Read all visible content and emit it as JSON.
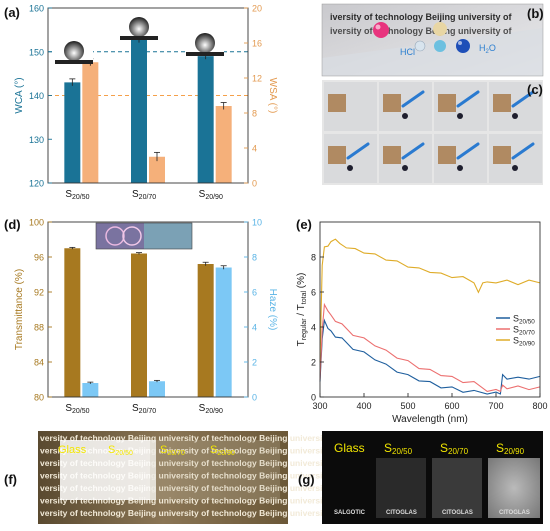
{
  "colors": {
    "wca": "#1a7396",
    "wsa": "#f5b07a",
    "trans": "#a77920",
    "haze": "#7cc8f5",
    "s50": "#1f5f9e",
    "s70": "#ec6f6f",
    "s90": "#dfac29",
    "axis": "#333333"
  },
  "panels": {
    "a": "(a)",
    "b": "(b)",
    "c": "(c)",
    "d": "(d)",
    "e": "(e)",
    "f": "(f)",
    "g": "(g)"
  },
  "photo_b": {
    "text_line": "iversity of technology Beijing university of",
    "drops": {
      "hcl": "HCl",
      "h2o": "H",
      "h2o_sub": "2",
      "h2o_end": "O"
    }
  },
  "photo_f": {
    "text_line": "versity of technology Beijing university of technology Beijing university",
    "labels": {
      "glass": "Glass",
      "s50": "S",
      "s50_sub": "20/50",
      "s70": "S",
      "s70_sub": "20/70",
      "s90": "S",
      "s90_sub": "20/90"
    }
  },
  "photo_g": {
    "labels": {
      "glass": "Glass",
      "s50": "S",
      "s50_sub": "20/50",
      "s70": "S",
      "s70_sub": "20/70",
      "s90": "S",
      "s90_sub": "20/90"
    },
    "brand": "CITOGLAS",
    "brand_mirror": "SALGOTIC"
  },
  "chart_data": [
    {
      "id": "a",
      "type": "bar",
      "categories": [
        "S",
        "S",
        "S"
      ],
      "category_subs": [
        "20/50",
        "20/70",
        "20/90"
      ],
      "series": [
        {
          "name": "WCA",
          "axis": "left",
          "values": [
            143,
            153,
            149
          ],
          "errors": [
            0.8,
            0.9,
            0.7
          ]
        },
        {
          "name": "WSA",
          "axis": "right",
          "values": [
            13.8,
            3.0,
            8.8
          ],
          "errors": [
            0.4,
            0.5,
            0.4
          ]
        }
      ],
      "ylabel": "WCA (°)",
      "y2label": "WSA (°)",
      "ylim": [
        120,
        160
      ],
      "y2lim": [
        0,
        20
      ],
      "yticks": [
        "120",
        "130",
        "140",
        "150",
        "160"
      ],
      "y2ticks": [
        "0",
        "4",
        "8",
        "12",
        "16",
        "20"
      ],
      "reference_lines": [
        {
          "axis": "left",
          "value": 150,
          "color": "#1a7396"
        },
        {
          "axis": "right",
          "value": 10,
          "color": "#f5a04a"
        }
      ]
    },
    {
      "id": "d",
      "type": "bar",
      "categories": [
        "S",
        "S",
        "S"
      ],
      "category_subs": [
        "20/50",
        "20/70",
        "20/90"
      ],
      "series": [
        {
          "name": "Transmittance",
          "axis": "left",
          "values": [
            97.0,
            96.4,
            95.2
          ],
          "errors": [
            0.1,
            0.1,
            0.2
          ]
        },
        {
          "name": "Haze",
          "axis": "right",
          "values": [
            0.8,
            0.9,
            7.4
          ],
          "errors": [
            0.05,
            0.05,
            0.1
          ]
        }
      ],
      "ylabel": "Transmittance (%)",
      "y2label": "Haze (%)",
      "ylim": [
        80,
        100
      ],
      "y2lim": [
        0,
        10
      ],
      "yticks": [
        "80",
        "84",
        "88",
        "92",
        "96",
        "100"
      ],
      "y2ticks": [
        "0",
        "2",
        "4",
        "6",
        "8",
        "10"
      ]
    },
    {
      "id": "e",
      "type": "line",
      "xlabel": "Wavelength (nm)",
      "ylabel_main": "T",
      "ylabel_sub1": "regular",
      "ylabel_mid": " / T",
      "ylabel_sub2": "total",
      "ylabel_end": " (%)",
      "xlim": [
        300,
        800
      ],
      "ylim": [
        0,
        10
      ],
      "xticks": [
        "300",
        "400",
        "500",
        "600",
        "700",
        "800"
      ],
      "yticks": [
        "0",
        "2",
        "4",
        "6",
        "8"
      ],
      "legend_position": "right",
      "series": [
        {
          "name": "S",
          "name_sub": "20/50",
          "x": [
            300,
            305,
            310,
            318,
            325,
            335,
            350,
            375,
            400,
            425,
            450,
            475,
            500,
            525,
            550,
            575,
            600,
            625,
            650,
            680,
            700,
            710,
            715,
            725,
            750,
            775,
            800
          ],
          "y": [
            0.8,
            3.4,
            4.3,
            4.0,
            3.7,
            3.5,
            3.3,
            2.8,
            2.5,
            2.2,
            1.8,
            1.5,
            1.2,
            1.0,
            0.8,
            0.6,
            0.5,
            0.35,
            0.3,
            0.25,
            0.2,
            0.25,
            1.2,
            1.1,
            1.05,
            1.1,
            1.1
          ]
        },
        {
          "name": "S",
          "name_sub": "20/70",
          "x": [
            300,
            305,
            310,
            318,
            325,
            335,
            350,
            375,
            400,
            425,
            450,
            475,
            500,
            525,
            550,
            575,
            600,
            625,
            650,
            680,
            700,
            710,
            715,
            725,
            750,
            775,
            800
          ],
          "y": [
            0.9,
            3.9,
            5.2,
            5.0,
            4.6,
            4.4,
            4.1,
            3.6,
            3.3,
            3.0,
            2.6,
            2.3,
            2.0,
            1.7,
            1.5,
            1.3,
            1.1,
            0.9,
            0.8,
            0.4,
            0.35,
            0.4,
            0.6,
            0.55,
            0.55,
            0.5,
            0.5
          ]
        },
        {
          "name": "S",
          "name_sub": "20/90",
          "x": [
            300,
            305,
            310,
            318,
            325,
            335,
            345,
            360,
            380,
            400,
            425,
            450,
            475,
            500,
            525,
            550,
            575,
            600,
            625,
            650,
            660,
            670,
            680,
            700,
            725,
            750,
            775,
            800
          ],
          "y": [
            1.9,
            7.6,
            8.5,
            8.7,
            8.8,
            9.1,
            8.7,
            8.6,
            8.4,
            8.3,
            8.1,
            7.9,
            7.7,
            7.5,
            7.3,
            7.2,
            7.0,
            6.9,
            6.8,
            6.6,
            5.9,
            6.6,
            6.5,
            6.6,
            6.6,
            6.5,
            6.6,
            6.6
          ]
        }
      ]
    }
  ]
}
